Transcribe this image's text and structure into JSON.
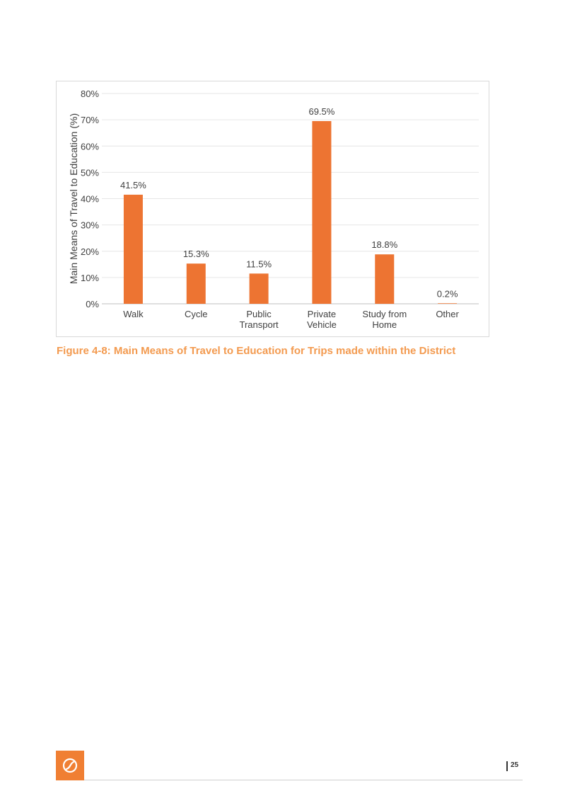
{
  "chart_data": {
    "type": "bar",
    "categories": [
      [
        "Walk"
      ],
      [
        "Cycle"
      ],
      [
        "Public",
        "Transport"
      ],
      [
        "Private",
        "Vehicle"
      ],
      [
        "Study from",
        "Home"
      ],
      [
        "Other"
      ]
    ],
    "values": [
      41.5,
      15.3,
      11.5,
      69.5,
      18.8,
      0.2
    ],
    "data_labels": [
      "41.5%",
      "15.3%",
      "11.5%",
      "69.5%",
      "18.8%",
      "0.2%"
    ],
    "yticks": [
      "0%",
      "10%",
      "20%",
      "30%",
      "40%",
      "50%",
      "60%",
      "70%",
      "80%"
    ],
    "ylabel": "Main Means of Travel to Education (%)",
    "ylim": [
      0,
      80
    ],
    "grid": true,
    "bar_color": "#ed7432"
  },
  "caption": "Figure 4-8: Main Means of Travel to Education for Trips made within the District",
  "footer": {
    "page_number": "25",
    "logo_color": "#f07f33"
  }
}
